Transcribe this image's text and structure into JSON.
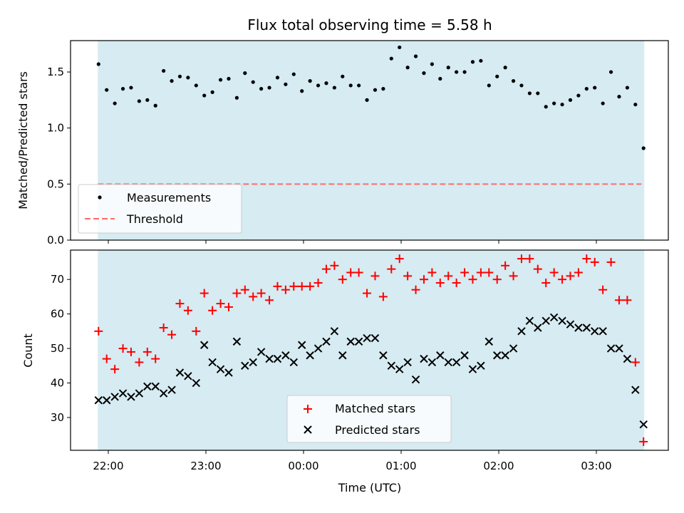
{
  "chart_data": [
    {
      "panel": "top",
      "type": "scatter",
      "title": "Flux total observing time = 5.58 h",
      "xlabel": "",
      "ylabel": "Matched/Predicted stars",
      "ylim": [
        0.0,
        1.78
      ],
      "yticks": [
        0.0,
        0.5,
        1.0,
        1.5
      ],
      "ytick_labels": [
        "0.0",
        "0.5",
        "1.0",
        "1.5"
      ],
      "legend_position": "lower-left",
      "shaded_region_color": "#add8e6",
      "series": [
        {
          "name": "Measurements",
          "marker": "dot",
          "color": "#000000",
          "y": [
            1.57,
            1.34,
            1.22,
            1.35,
            1.36,
            1.24,
            1.25,
            1.2,
            1.51,
            1.42,
            1.46,
            1.45,
            1.38,
            1.29,
            1.32,
            1.43,
            1.44,
            1.27,
            1.49,
            1.41,
            1.35,
            1.36,
            1.45,
            1.39,
            1.48,
            1.33,
            1.42,
            1.38,
            1.4,
            1.36,
            1.46,
            1.38,
            1.38,
            1.25,
            1.34,
            1.35,
            1.62,
            1.72,
            1.54,
            1.64,
            1.49,
            1.57,
            1.44,
            1.54,
            1.5,
            1.5,
            1.59,
            1.6,
            1.38,
            1.46,
            1.54,
            1.42,
            1.38,
            1.31,
            1.31,
            1.19,
            1.22,
            1.21,
            1.25,
            1.29,
            1.35,
            1.36,
            1.22,
            1.5,
            1.28,
            1.36,
            1.21,
            0.82
          ]
        },
        {
          "name": "Threshold",
          "style": "dashed",
          "color": "#ff6b6b",
          "y": 0.5
        }
      ]
    },
    {
      "panel": "bottom",
      "type": "scatter",
      "title": "",
      "xlabel": "Time (UTC)",
      "ylabel": "Count",
      "ylim": [
        20.5,
        78.5
      ],
      "yticks": [
        30,
        40,
        50,
        60,
        70
      ],
      "ytick_labels": [
        "30",
        "40",
        "50",
        "60",
        "70"
      ],
      "xticks": [
        "22:00",
        "23:00",
        "00:00",
        "01:00",
        "02:00",
        "03:00"
      ],
      "legend_position": "lower-center",
      "shaded_region_color": "#add8e6",
      "series": [
        {
          "name": "Matched stars",
          "marker": "plus",
          "color": "#ff0000",
          "y": [
            55,
            47,
            44,
            50,
            49,
            46,
            49,
            47,
            56,
            54,
            63,
            61,
            55,
            66,
            61,
            63,
            62,
            66,
            67,
            65,
            66,
            64,
            68,
            67,
            68,
            68,
            68,
            69,
            73,
            74,
            70,
            72,
            72,
            66,
            71,
            65,
            73,
            76,
            71,
            67,
            70,
            72,
            69,
            71,
            69,
            72,
            70,
            72,
            72,
            70,
            74,
            71,
            76,
            76,
            73,
            69,
            72,
            70,
            71,
            72,
            76,
            75,
            67,
            75,
            64,
            64,
            46,
            23
          ]
        },
        {
          "name": "Predicted stars",
          "marker": "x",
          "color": "#000000",
          "y": [
            35,
            35,
            36,
            37,
            36,
            37,
            39,
            39,
            37,
            38,
            43,
            42,
            40,
            51,
            46,
            44,
            43,
            52,
            45,
            46,
            49,
            47,
            47,
            48,
            46,
            51,
            48,
            50,
            52,
            55,
            48,
            52,
            52,
            53,
            53,
            48,
            45,
            44,
            46,
            41,
            47,
            46,
            48,
            46,
            46,
            48,
            44,
            45,
            52,
            48,
            48,
            50,
            55,
            58,
            56,
            58,
            59,
            58,
            57,
            56,
            56,
            55,
            55,
            50,
            50,
            47,
            38,
            28
          ]
        }
      ]
    }
  ],
  "x_axis": {
    "start_time": "21:54",
    "end_time": "03:29",
    "interval_minutes": 5,
    "tick_labels": [
      "22:00",
      "23:00",
      "00:00",
      "01:00",
      "02:00",
      "03:00"
    ]
  }
}
